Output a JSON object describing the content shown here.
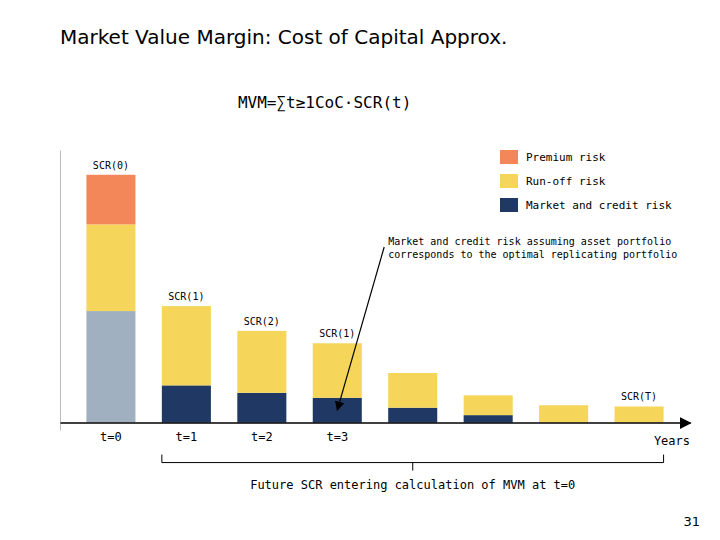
{
  "chart_data": {
    "type": "bar",
    "stacked": true,
    "title": "Market Value Margin:  Cost of Capital Approx.",
    "x_label": "Years",
    "categories": [
      "t=0",
      "t=1",
      "t=2",
      "t=3",
      null,
      null,
      null,
      null
    ],
    "series": [
      {
        "color": "#a0b0c0",
        "values": [
          4.5,
          0.0,
          0.0,
          0.0,
          0.0,
          0.0,
          0.0,
          0.0
        ]
      },
      {
        "name": "Market and credit risk",
        "color": "#1f3864",
        "values": [
          0.0,
          1.5,
          1.2,
          1.0,
          0.6,
          0.3,
          0.0,
          0.0
        ]
      },
      {
        "name": "Run-off risk",
        "color": "#f5d55a",
        "values": [
          3.5,
          3.2,
          2.5,
          2.2,
          1.4,
          0.8,
          0.7,
          0.65
        ]
      },
      {
        "name": "Premium risk",
        "color": "#f4875a",
        "values": [
          2.0,
          0.0,
          0.0,
          0.0,
          0.0,
          0.0,
          0.0,
          0.0
        ]
      }
    ],
    "bar_labels": [
      "SCR(0)",
      "SCR(1)",
      "SCR(2)",
      "SCR(1)",
      null,
      null,
      null,
      "SCR(T)"
    ],
    "annotations": [
      "MVM=∑t≥1CoC·SCR(t)",
      "Market and credit risk assuming asset portfolio\ncorresponds to the optimal replicating portfolio",
      "Future SCR entering calculation of MVM at t=0"
    ],
    "page_number": "31",
    "ylim": [
      -0.3,
      11
    ],
    "tick_labels": "x",
    "grid": false,
    "legend": "upper right"
  }
}
